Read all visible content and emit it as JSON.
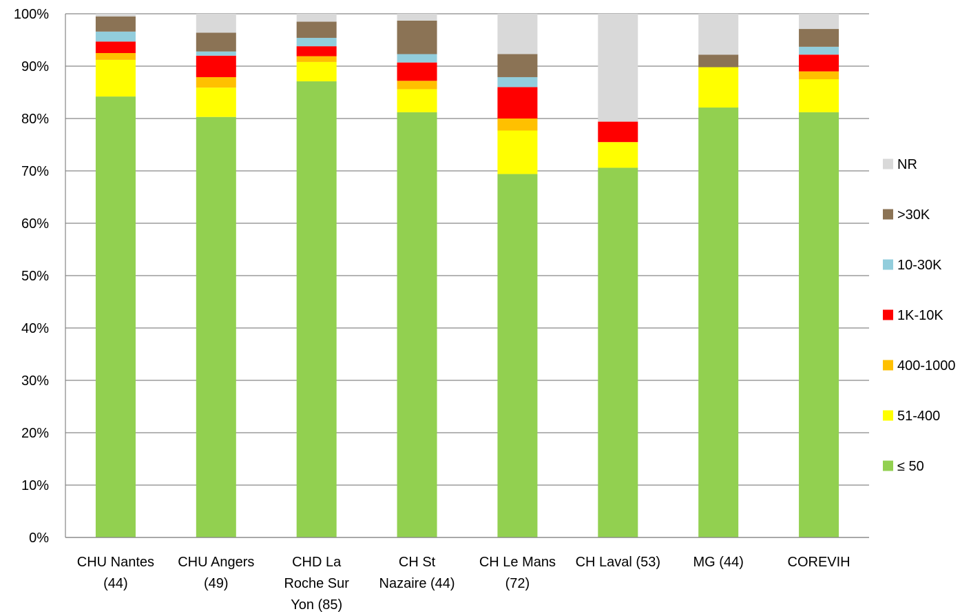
{
  "chart_data": {
    "type": "bar",
    "stacked": "percent",
    "categories": [
      [
        "CHU Nantes",
        "(44)"
      ],
      [
        "CHU Angers",
        "(49)"
      ],
      [
        "CHD La",
        "Roche Sur",
        "Yon (85)"
      ],
      [
        "CH St",
        "Nazaire (44)"
      ],
      [
        "CH Le Mans",
        "(72)"
      ],
      [
        "CH Laval (53)"
      ],
      [
        "MG (44)"
      ],
      [
        "COREVIH"
      ]
    ],
    "y_ticks": [
      "0%",
      "10%",
      "20%",
      "30%",
      "40%",
      "50%",
      "60%",
      "70%",
      "80%",
      "90%",
      "100%"
    ],
    "ylim": [
      0,
      100
    ],
    "grid": true,
    "legend_position": "right",
    "series": [
      {
        "name": "≤ 50",
        "color": "#92D050",
        "values": [
          84.2,
          80.3,
          87.1,
          81.2,
          69.4,
          70.6,
          82.1,
          81.2
        ]
      },
      {
        "name": "51-400",
        "color": "#FFFF00",
        "values": [
          7.0,
          5.6,
          3.7,
          4.4,
          8.3,
          4.9,
          7.7,
          6.3
        ]
      },
      {
        "name": "400-1000",
        "color": "#FFC000",
        "values": [
          1.3,
          2.0,
          1.1,
          1.6,
          2.3,
          0.0,
          0.0,
          1.5
        ]
      },
      {
        "name": "1K-10K",
        "color": "#FF0000",
        "values": [
          2.2,
          4.1,
          1.9,
          3.5,
          6.0,
          3.9,
          0.0,
          3.2
        ]
      },
      {
        "name": "10-30K",
        "color": "#92CDDC",
        "values": [
          1.9,
          0.8,
          1.6,
          1.6,
          1.9,
          0.0,
          0.0,
          1.5
        ]
      },
      {
        "name": ">30K",
        "color": "#8B7355",
        "values": [
          2.9,
          3.6,
          3.1,
          6.4,
          4.4,
          0.0,
          2.4,
          3.4
        ]
      },
      {
        "name": "NR",
        "color": "#D9D9D9",
        "values": [
          0.5,
          3.6,
          1.5,
          1.3,
          7.7,
          20.6,
          7.8,
          2.9
        ]
      }
    ]
  }
}
